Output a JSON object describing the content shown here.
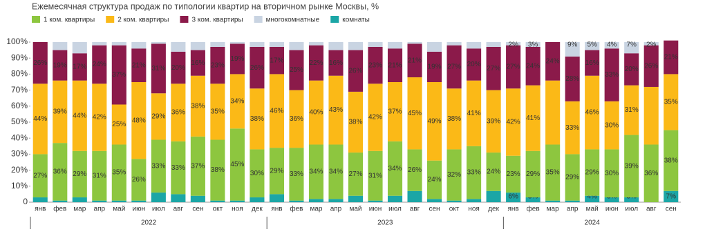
{
  "chart_data": {
    "type": "stacked-bar",
    "title": "Ежемесячная структура продаж по типологии квартир на вторичном рынке Москвы, %",
    "categories": [
      "янв",
      "фев",
      "мар",
      "апр",
      "май",
      "июн",
      "июл",
      "авг",
      "сен",
      "окт",
      "ноя",
      "дек",
      "янв",
      "фев",
      "мар",
      "апр",
      "май",
      "июн",
      "июл",
      "авг",
      "сен",
      "окт",
      "ноя",
      "дек",
      "янв",
      "фев",
      "мар",
      "апр",
      "май",
      "июн",
      "июл",
      "авг",
      "сен"
    ],
    "x_groups": [
      {
        "label": "2022",
        "size": 12
      },
      {
        "label": "2023",
        "size": 12
      },
      {
        "label": "2024",
        "size": 9
      }
    ],
    "ylim": [
      0,
      100
    ],
    "yticks": [
      0,
      {
        "value": 10,
        "label": "10%"
      },
      {
        "value": 20,
        "label": "20%"
      },
      {
        "value": 30,
        "label": "30%"
      },
      {
        "value": 40,
        "label": "40%"
      },
      {
        "value": 50,
        "label": "50%"
      },
      {
        "value": 60,
        "label": "60%"
      },
      {
        "value": 70,
        "label": "70%"
      },
      {
        "value": 80,
        "label": "80%"
      },
      {
        "value": 90,
        "label": "90%"
      },
      {
        "value": 100,
        "label": "100%"
      }
    ],
    "series": [
      {
        "name": "1 ком. квартиры",
        "color": "#8dc63f",
        "values": [
          27,
          36,
          29,
          31,
          35,
          26,
          33,
          33,
          37,
          38,
          45,
          30,
          29,
          33,
          34,
          34,
          27,
          31,
          34,
          26,
          24,
          32,
          33,
          24,
          23,
          29,
          35,
          29,
          29,
          30,
          39,
          36,
          38
        ],
        "value_labels": [
          "27%",
          "36%",
          "29%",
          "31%",
          "35%",
          "26%",
          "33%",
          "33%",
          "37%",
          "38%",
          "45%",
          "30%",
          "29%",
          "33%",
          "34%",
          "34%",
          "27%",
          "31%",
          "34%",
          "26%",
          "24%",
          "32%",
          "33%",
          "24%",
          "23%",
          "29%",
          "35%",
          "29%",
          "29%",
          "30%",
          "39%",
          "36%",
          "38%"
        ]
      },
      {
        "name": "2 ком. квартиры",
        "color": "#fbb917",
        "values": [
          44,
          39,
          44,
          42,
          25,
          48,
          29,
          36,
          38,
          35,
          34,
          38,
          46,
          36,
          40,
          43,
          38,
          42,
          37,
          45,
          49,
          38,
          41,
          39,
          42,
          41,
          40,
          33,
          46,
          30,
          31,
          36,
          35
        ],
        "value_labels": [
          "44%",
          "39%",
          "44%",
          "42%",
          "25%",
          "48%",
          "29%",
          "36%",
          "38%",
          "35%",
          "34%",
          "38%",
          "46%",
          "36%",
          "40%",
          "43%",
          "38%",
          "42%",
          "37%",
          "45%",
          "49%",
          "38%",
          "41%",
          "39%",
          "42%",
          "41%",
          null,
          "33%",
          "46%",
          "30%",
          "31%",
          null,
          "35%"
        ]
      },
      {
        "name": "3 ком. квартиры",
        "color": "#8b1a4a",
        "values": [
          26,
          19,
          17,
          24,
          37,
          21,
          31,
          20,
          16,
          23,
          19,
          26,
          17,
          25,
          22,
          16,
          26,
          23,
          21,
          21,
          19,
          27,
          20,
          27,
          27,
          24,
          24,
          28,
          16,
          33,
          20,
          26,
          21
        ],
        "value_labels": [
          "26%",
          "19%",
          "17%",
          "24%",
          "37%",
          "21%",
          "31%",
          "20%",
          "16%",
          "23%",
          "19%",
          "26%",
          "17%",
          "25%",
          "22%",
          "16%",
          "26%",
          "23%",
          "21%",
          "21%",
          "19%",
          "27%",
          "20%",
          "27%",
          "27%",
          "24%",
          "24%",
          "28%",
          "16%",
          "33%",
          "20%",
          "26%",
          "21%"
        ]
      },
      {
        "name": "многокомнатные",
        "color": "#c9d4e2",
        "values": [
          0,
          5,
          7,
          2,
          2,
          4,
          1,
          6,
          5,
          3,
          1,
          3,
          3,
          5,
          2,
          5,
          5,
          3,
          4,
          1,
          6,
          2,
          4,
          3,
          2,
          3,
          0,
          9,
          5,
          4,
          7,
          2,
          0
        ],
        "value_labels": [
          null,
          null,
          null,
          null,
          null,
          null,
          null,
          null,
          null,
          null,
          null,
          null,
          null,
          null,
          null,
          null,
          null,
          null,
          null,
          null,
          null,
          null,
          null,
          null,
          "2%",
          "3%",
          null,
          "9%",
          "5%",
          "4%",
          "7%",
          "2%",
          null
        ]
      },
      {
        "name": "комнаты",
        "color": "#1ba6a6",
        "values": [
          3,
          1,
          3,
          1,
          1,
          1,
          6,
          5,
          4,
          1,
          1,
          3,
          5,
          1,
          2,
          2,
          4,
          1,
          4,
          7,
          2,
          1,
          2,
          7,
          6,
          3,
          1,
          1,
          4,
          3,
          3,
          0,
          7
        ],
        "value_labels": [
          null,
          null,
          null,
          null,
          null,
          null,
          null,
          null,
          null,
          null,
          null,
          null,
          null,
          null,
          null,
          null,
          null,
          null,
          null,
          null,
          null,
          null,
          null,
          null,
          "6%",
          "3%",
          "1%",
          "1%",
          "4%",
          "3%",
          "3%",
          "0%",
          "7%"
        ]
      }
    ]
  }
}
